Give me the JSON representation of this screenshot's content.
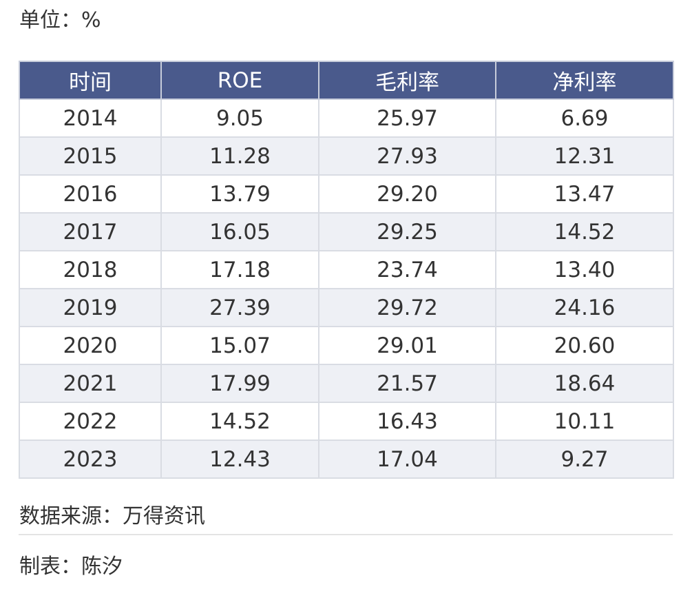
{
  "unit_label": "单位：%",
  "source_label": "数据来源：万得资讯",
  "author_label": "制表：陈汐",
  "colors": {
    "header_bg": "#4a5a8c",
    "header_text": "#ffffff",
    "stripe_bg": "#eef0f5",
    "border": "#d9dce3"
  },
  "chart_data": {
    "type": "table",
    "columns": [
      "时间",
      "ROE",
      "毛利率",
      "净利率"
    ],
    "rows": [
      [
        "2014",
        "9.05",
        "25.97",
        "6.69"
      ],
      [
        "2015",
        "11.28",
        "27.93",
        "12.31"
      ],
      [
        "2016",
        "13.79",
        "29.20",
        "13.47"
      ],
      [
        "2017",
        "16.05",
        "29.25",
        "14.52"
      ],
      [
        "2018",
        "17.18",
        "23.74",
        "13.40"
      ],
      [
        "2019",
        "27.39",
        "29.72",
        "24.16"
      ],
      [
        "2020",
        "15.07",
        "29.01",
        "20.60"
      ],
      [
        "2021",
        "17.99",
        "21.57",
        "18.64"
      ],
      [
        "2022",
        "14.52",
        "16.43",
        "10.11"
      ],
      [
        "2023",
        "12.43",
        "17.04",
        "9.27"
      ]
    ]
  }
}
